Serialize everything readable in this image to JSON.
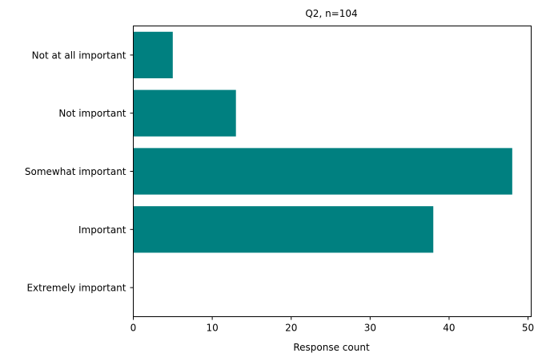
{
  "chart_data": {
    "type": "bar",
    "orientation": "horizontal",
    "title": "Q2, n=104",
    "xlabel": "Response count",
    "ylabel": "",
    "categories": [
      "Not at all important",
      "Not important",
      "Somewhat important",
      "Important",
      "Extremely important"
    ],
    "values": [
      5,
      13,
      48,
      38,
      0
    ],
    "xlim": [
      0,
      50.4
    ],
    "x_ticks": [
      0,
      10,
      20,
      30,
      40,
      50
    ],
    "grid": false,
    "legend": "none",
    "bar_color": "#008080"
  }
}
